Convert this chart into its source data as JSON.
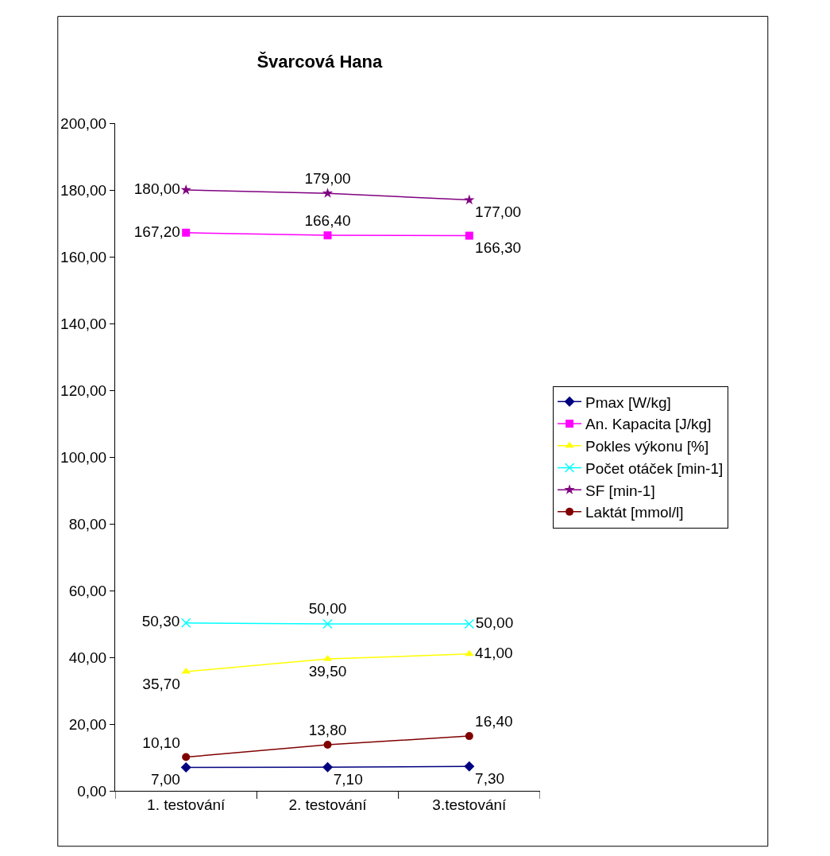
{
  "chart_data": {
    "type": "line",
    "title": "Švarcová Hana",
    "categories": [
      "1. testování",
      "2. testování",
      "3.testování"
    ],
    "series": [
      {
        "name": "Pmax [W/kg]",
        "color": "#000080",
        "marker": "diamond",
        "values": [
          7.0,
          7.1,
          7.3
        ],
        "value_labels": [
          "7,00",
          "7,10",
          "7,30"
        ]
      },
      {
        "name": "An. Kapacita [J/kg]",
        "color": "#ff00ff",
        "marker": "square",
        "values": [
          167.2,
          166.4,
          166.3
        ],
        "value_labels": [
          "167,20",
          "166,40",
          "166,30"
        ]
      },
      {
        "name": "Pokles výkonu [%]",
        "color": "#ffff00",
        "marker": "triangle",
        "values": [
          35.7,
          39.5,
          41.0
        ],
        "value_labels": [
          "35,70",
          "39,50",
          "41,00"
        ]
      },
      {
        "name": "Počet otáček [min-1]",
        "color": "#00ffff",
        "marker": "cross",
        "values": [
          50.3,
          50.0,
          50.0
        ],
        "value_labels": [
          "50,30",
          "50,00",
          "50,00"
        ]
      },
      {
        "name": "SF [min-1]",
        "color": "#800080",
        "marker": "star",
        "values": [
          180.0,
          179.0,
          177.0
        ],
        "value_labels": [
          "180,00",
          "179,00",
          "177,00"
        ]
      },
      {
        "name": "Laktát [mmol/l]",
        "color": "#800000",
        "marker": "circle",
        "values": [
          10.1,
          13.8,
          16.4
        ],
        "value_labels": [
          "10,10",
          "13,80",
          "16,40"
        ]
      }
    ],
    "ylim": [
      0,
      200
    ],
    "yticks": [
      {
        "value": 0,
        "label": "0,00"
      },
      {
        "value": 20,
        "label": "20,00"
      },
      {
        "value": 40,
        "label": "40,00"
      },
      {
        "value": 60,
        "label": "60,00"
      },
      {
        "value": 80,
        "label": "80,00"
      },
      {
        "value": 100,
        "label": "100,00"
      },
      {
        "value": 120,
        "label": "120,00"
      },
      {
        "value": 140,
        "label": "140,00"
      },
      {
        "value": 160,
        "label": "160,00"
      },
      {
        "value": 180,
        "label": "180,00"
      },
      {
        "value": 200,
        "label": "200,00"
      }
    ],
    "grid": false,
    "legend": "right",
    "line_style": "solid"
  }
}
